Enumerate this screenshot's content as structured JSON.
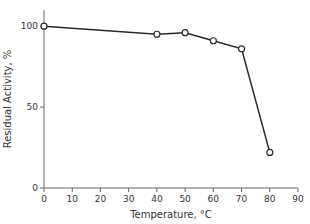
{
  "chart_data": {
    "type": "line",
    "xlabel": "Temperature, °C",
    "ylabel": "Residual Activity, %",
    "x": [
      0,
      40,
      50,
      60,
      70,
      80
    ],
    "values": [
      100,
      95,
      96,
      91,
      86,
      22
    ],
    "color": "#2a2a2a",
    "marker": "circle",
    "xlim": [
      0,
      90
    ],
    "ylim": [
      0,
      110
    ],
    "xticks": [
      0,
      10,
      20,
      30,
      40,
      50,
      60,
      70,
      80,
      90
    ],
    "yticks": [
      0,
      50,
      100
    ],
    "grid": false
  }
}
